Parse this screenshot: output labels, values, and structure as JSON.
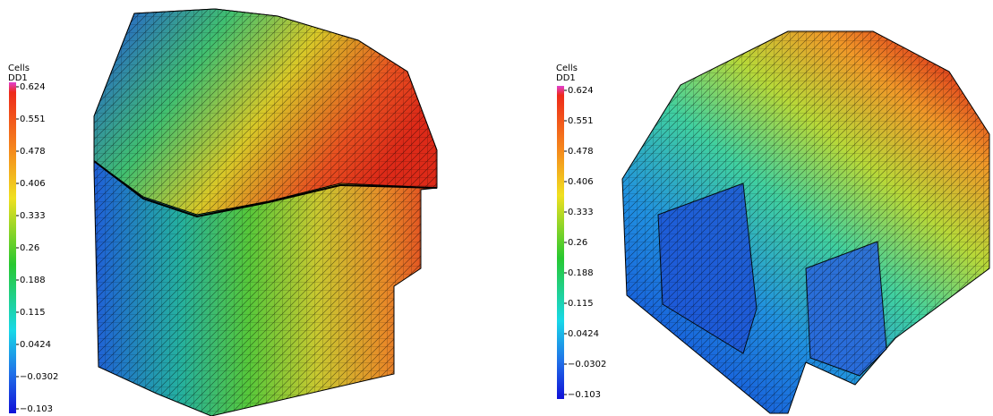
{
  "panels": [
    {
      "colorbar": {
        "title": "Cells",
        "variable": "DD1",
        "ticks": [
          "0.624",
          "0.551",
          "0.478",
          "0.406",
          "0.333",
          "0.26",
          "0.188",
          "0.115",
          "0.0424",
          "−0.0302",
          "−0.103"
        ]
      }
    },
    {
      "colorbar": {
        "title": "Cells",
        "variable": "DD1",
        "ticks": [
          "0.624",
          "0.551",
          "0.478",
          "0.406",
          "0.333",
          "0.26",
          "0.188",
          "0.115",
          "0.0424",
          "−0.0302",
          "−0.103"
        ]
      }
    }
  ]
}
